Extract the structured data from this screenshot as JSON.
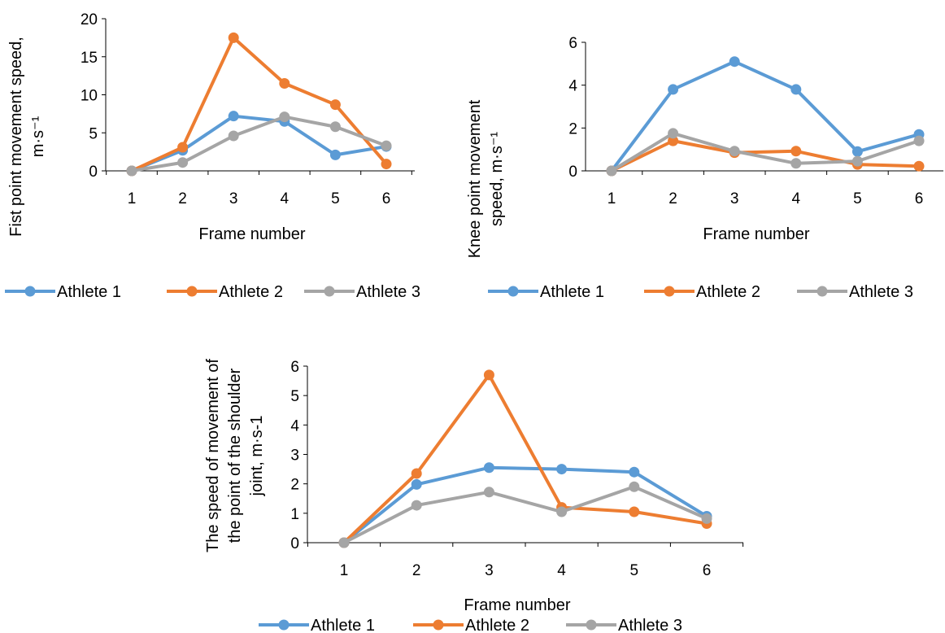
{
  "colors": {
    "athlete1": "#5b9bd5",
    "athlete2": "#ed7d31",
    "athlete3": "#a5a5a5"
  },
  "chart_data": [
    {
      "id": "fist",
      "type": "line",
      "title": "",
      "xlabel": "Frame number",
      "ylabel_lines": [
        "Fist point movement speed,",
        "m·s⁻¹"
      ],
      "categories": [
        "1",
        "2",
        "3",
        "4",
        "5",
        "6"
      ],
      "yticks": [
        "0",
        "5",
        "10",
        "15",
        "20"
      ],
      "ylim": [
        0,
        20
      ],
      "legend": "bottom",
      "series": [
        {
          "name": "Athlete 1",
          "values": [
            0,
            2.7,
            7.2,
            6.5,
            2.1,
            3.2
          ]
        },
        {
          "name": "Athlete 2",
          "values": [
            0,
            3.1,
            17.5,
            11.5,
            8.7,
            0.9
          ]
        },
        {
          "name": "Athlete 3",
          "values": [
            0,
            1.1,
            4.6,
            7.1,
            5.8,
            3.3
          ]
        }
      ]
    },
    {
      "id": "knee",
      "type": "line",
      "title": "",
      "xlabel": "Frame number",
      "ylabel_lines": [
        "Knee point movement",
        "speed, m·s⁻¹"
      ],
      "categories": [
        "1",
        "2",
        "3",
        "4",
        "5",
        "6"
      ],
      "yticks": [
        "0",
        "2",
        "4",
        "6"
      ],
      "ylim": [
        0,
        6
      ],
      "legend": "bottom",
      "series": [
        {
          "name": "Athlete 1",
          "values": [
            0,
            3.8,
            5.1,
            3.8,
            0.9,
            1.7
          ]
        },
        {
          "name": "Athlete 2",
          "values": [
            0,
            1.4,
            0.85,
            0.92,
            0.3,
            0.22
          ]
        },
        {
          "name": "Athlete 3",
          "values": [
            0,
            1.75,
            0.92,
            0.35,
            0.45,
            1.4
          ]
        }
      ]
    },
    {
      "id": "shoulder",
      "type": "line",
      "title": "",
      "xlabel": "Frame number",
      "ylabel_lines": [
        "The speed of movement of",
        "the point of the shoulder",
        "joint, m·s-1"
      ],
      "categories": [
        "1",
        "2",
        "3",
        "4",
        "5",
        "6"
      ],
      "yticks": [
        "0",
        "1",
        "2",
        "3",
        "4",
        "5",
        "6"
      ],
      "ylim": [
        0,
        6
      ],
      "legend": "bottom",
      "series": [
        {
          "name": "Athlete 1",
          "values": [
            0,
            1.98,
            2.55,
            2.5,
            2.4,
            0.9
          ]
        },
        {
          "name": "Athlete 2",
          "values": [
            0,
            2.35,
            5.7,
            1.2,
            1.05,
            0.65
          ]
        },
        {
          "name": "Athlete 3",
          "values": [
            0,
            1.27,
            1.72,
            1.05,
            1.9,
            0.82
          ]
        }
      ]
    }
  ]
}
